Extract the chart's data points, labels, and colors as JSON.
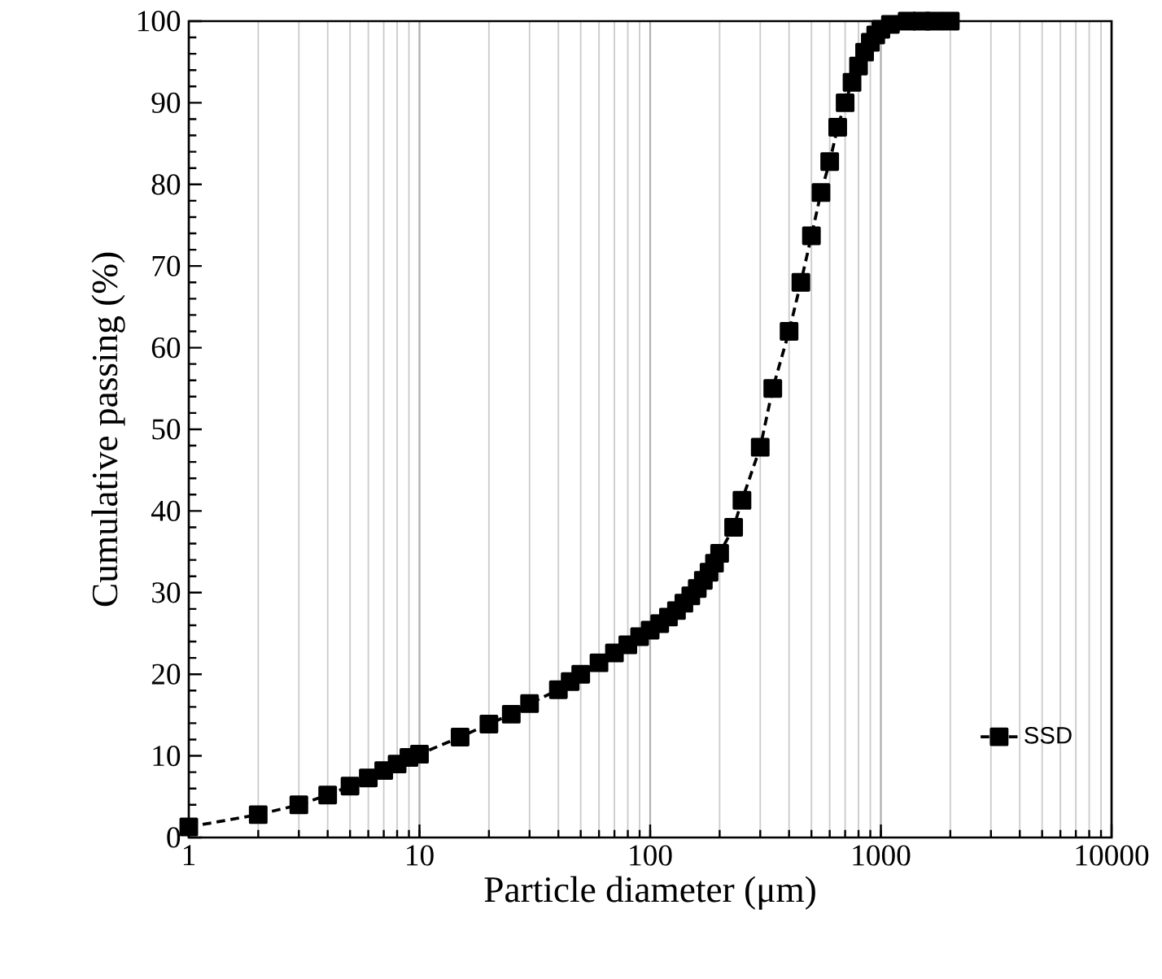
{
  "chart_data": {
    "type": "line",
    "xlabel": "Particle diameter (μm)",
    "ylabel": "Cumulative  passing (%)",
    "log": "x",
    "grid": "x",
    "legend": "bottom right",
    "marker": "square",
    "line_style": "dashed",
    "xlim": [
      1,
      10000
    ],
    "xticks": [
      1,
      10,
      100,
      1000,
      10000
    ],
    "ylim": [
      0,
      100
    ],
    "yticks": [
      0,
      10,
      20,
      30,
      40,
      50,
      60,
      70,
      80,
      90,
      100
    ],
    "series": [
      {
        "name": "SSD",
        "color": "#000000",
        "x": [
          1,
          2,
          3,
          4,
          5,
          6,
          7,
          8,
          9,
          10,
          15,
          20,
          25,
          30,
          40,
          45,
          50,
          60,
          70,
          80,
          90,
          100,
          110,
          120,
          130,
          140,
          150,
          160,
          170,
          180,
          190,
          200,
          230,
          250,
          300,
          340,
          400,
          450,
          500,
          550,
          600,
          650,
          700,
          750,
          800,
          850,
          900,
          950,
          1000,
          1100,
          1200,
          1300,
          1500,
          1700,
          2000
        ],
        "values": [
          1.3,
          2.8,
          4.0,
          5.2,
          6.3,
          7.3,
          8.2,
          9.0,
          9.8,
          10.2,
          12.3,
          13.9,
          15.1,
          16.4,
          18.1,
          19.1,
          20.0,
          21.4,
          22.6,
          23.6,
          24.6,
          25.4,
          26.2,
          27.0,
          27.8,
          28.7,
          29.6,
          30.5,
          31.5,
          32.5,
          33.6,
          34.8,
          38.0,
          41.3,
          47.8,
          55.0,
          62.0,
          68.0,
          73.7,
          79.0,
          82.8,
          87.0,
          90.0,
          92.5,
          94.5,
          96.2,
          97.4,
          98.3,
          99.0,
          99.6,
          null,
          100,
          100,
          100,
          100
        ]
      }
    ]
  }
}
